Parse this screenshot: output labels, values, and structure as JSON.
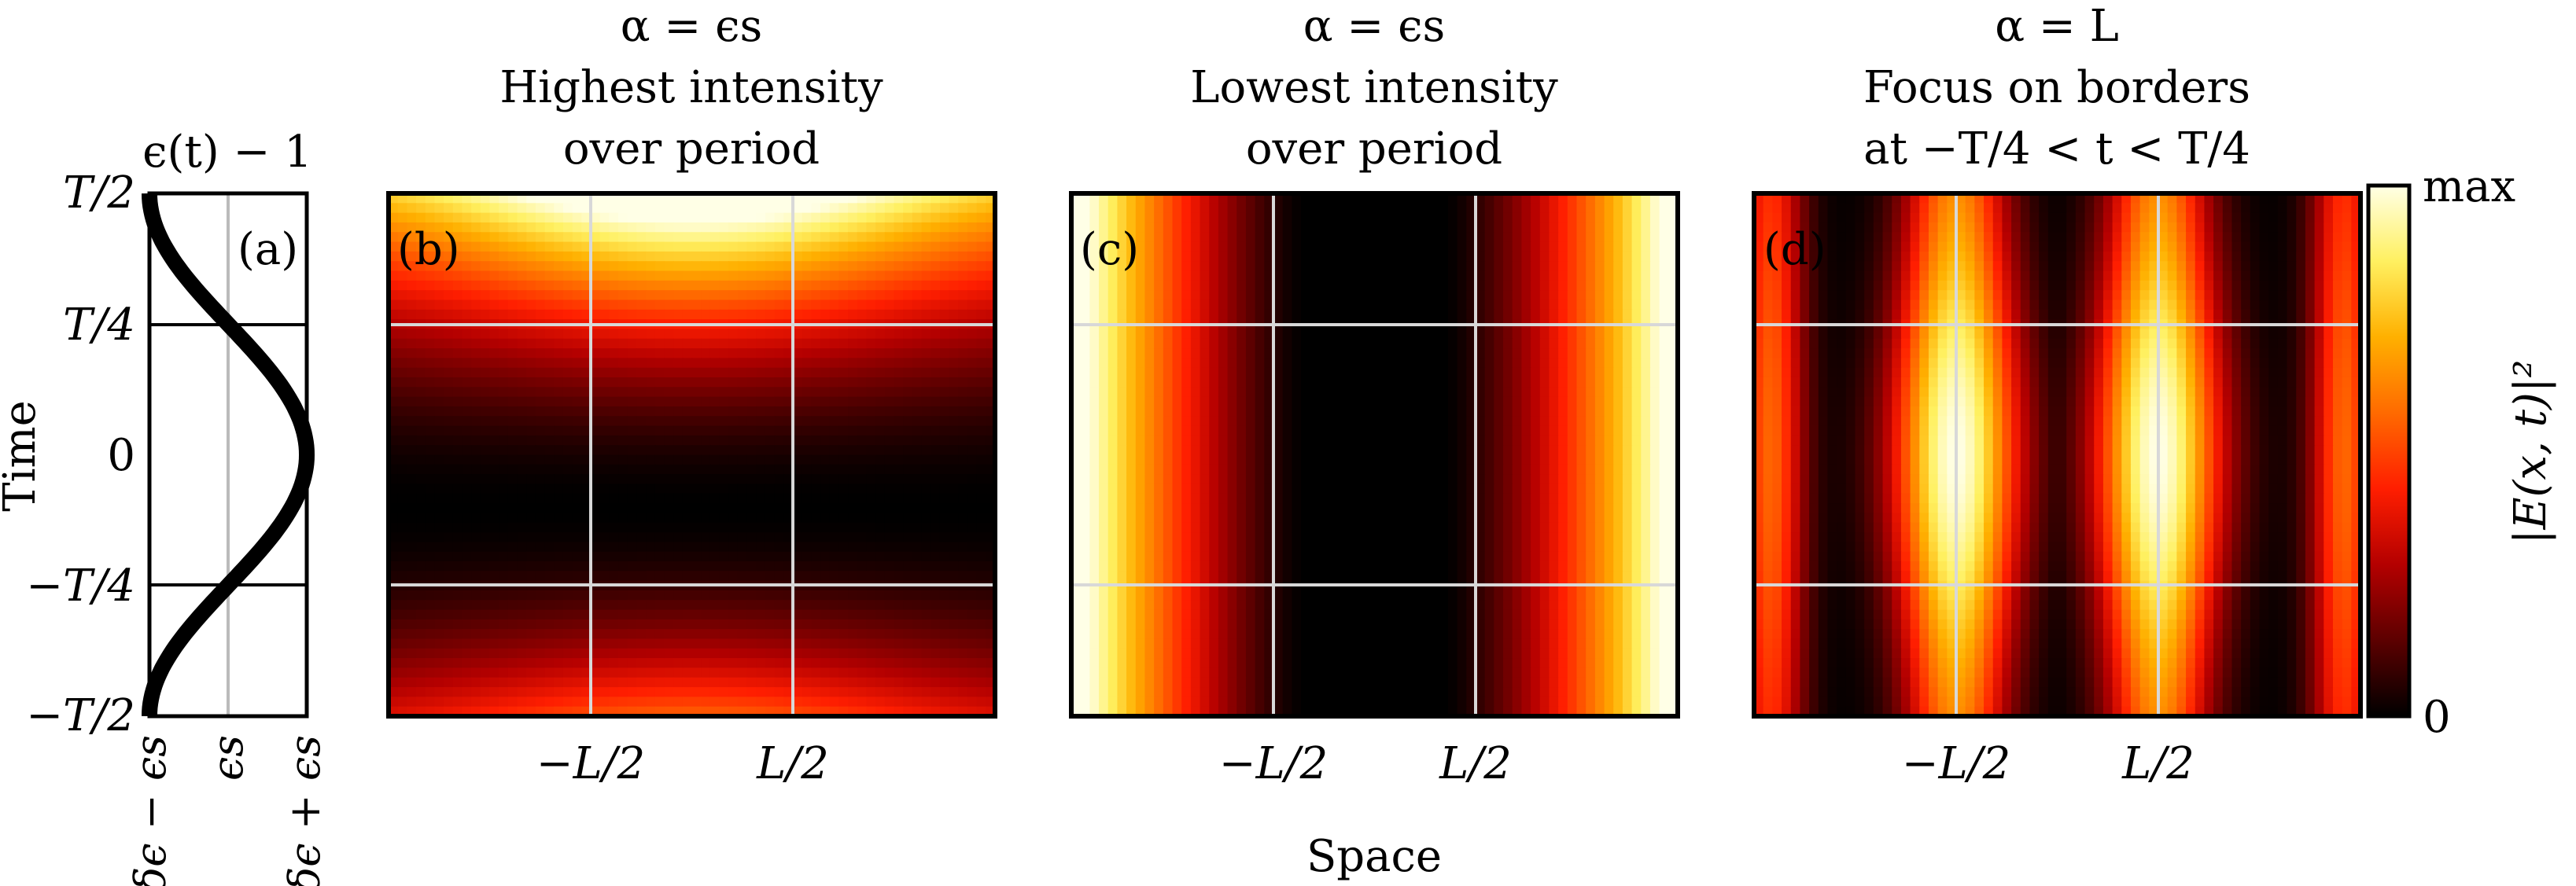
{
  "chart_data": [
    {
      "panel": "(a)",
      "type": "line",
      "title": "ϵ(t) − 1",
      "ylabel": "Time",
      "y_ticks": [
        "−T/2",
        "−T/4",
        "0",
        "T/4",
        "T/2"
      ],
      "y_tick_values": [
        -0.5,
        -0.25,
        0,
        0.25,
        0.5
      ],
      "x_ticks": [
        "δϵ − ϵs",
        "ϵs",
        "δϵ + ϵs"
      ],
      "x_tick_values": [
        -1,
        0,
        1
      ],
      "xlim": [
        -1,
        1
      ],
      "ylim": [
        -0.5,
        0.5
      ],
      "grid": "horizontal lines at ±T/4, vertical line at ϵs",
      "curve": {
        "description": "ϵ(t) − 1 = ϵs + δϵ cos(2πt/T)",
        "t": [
          -0.5,
          -0.4375,
          -0.375,
          -0.3125,
          -0.25,
          -0.1875,
          -0.125,
          -0.0625,
          0,
          0.0625,
          0.125,
          0.1875,
          0.25,
          0.3125,
          0.375,
          0.4375,
          0.5
        ],
        "value": [
          -1,
          -0.924,
          -0.707,
          -0.383,
          0,
          0.383,
          0.707,
          0.924,
          1,
          0.924,
          0.707,
          0.383,
          0,
          -0.383,
          -0.707,
          -0.924,
          -1
        ]
      }
    },
    {
      "panel": "(b)",
      "type": "heatmap",
      "title_lines": [
        "α = ϵs",
        "Highest intensity",
        "over period"
      ],
      "x_ticks": [
        "−L/2",
        "L/2"
      ],
      "x_tick_values": [
        -0.5,
        0.5
      ],
      "xlim": [
        -1.5,
        1.5
      ],
      "ylim": [
        -0.5,
        0.5
      ],
      "grid": "white lines at x = ±L/2 and t = ±T/4",
      "description": "bright spot at top center near t = T/2, dark region around t ≈ −T/8, bright again at bottom"
    },
    {
      "panel": "(c)",
      "type": "heatmap",
      "title_lines": [
        "α = ϵs",
        "Lowest intensity",
        "over period"
      ],
      "x_ticks": [
        "−L/2",
        "L/2"
      ],
      "x_tick_values": [
        -0.5,
        0.5
      ],
      "xlim": [
        -1.5,
        1.5
      ],
      "ylim": [
        -0.5,
        0.5
      ],
      "grid": "white lines at x = ±L/2 and t = ±T/4",
      "description": "time-independent: dark in the center, bright at left and right edges"
    },
    {
      "panel": "(d)",
      "type": "heatmap",
      "title_lines": [
        "α = L",
        "Focus on borders",
        "at −T/4 < t < T/4"
      ],
      "x_ticks": [
        "−L/2",
        "L/2"
      ],
      "x_tick_values": [
        -0.5,
        0.5
      ],
      "xlim": [
        -1.5,
        1.5
      ],
      "ylim": [
        -0.5,
        0.5
      ],
      "grid": "white lines at x = ±L/2 and t = ±T/4",
      "description": "bright vertical lobes at x = ±L/2, strongest for −T/4 < t < T/4"
    }
  ],
  "shared": {
    "xlabel": "Space",
    "colorbar": {
      "label": "|E(x, t)|²",
      "max_label": "max",
      "min_label": "0",
      "colormap": [
        "#000000",
        "#5c0000",
        "#b40000",
        "#ff1e00",
        "#ff6a00",
        "#ffb000",
        "#fff060",
        "#ffffe6"
      ]
    }
  }
}
